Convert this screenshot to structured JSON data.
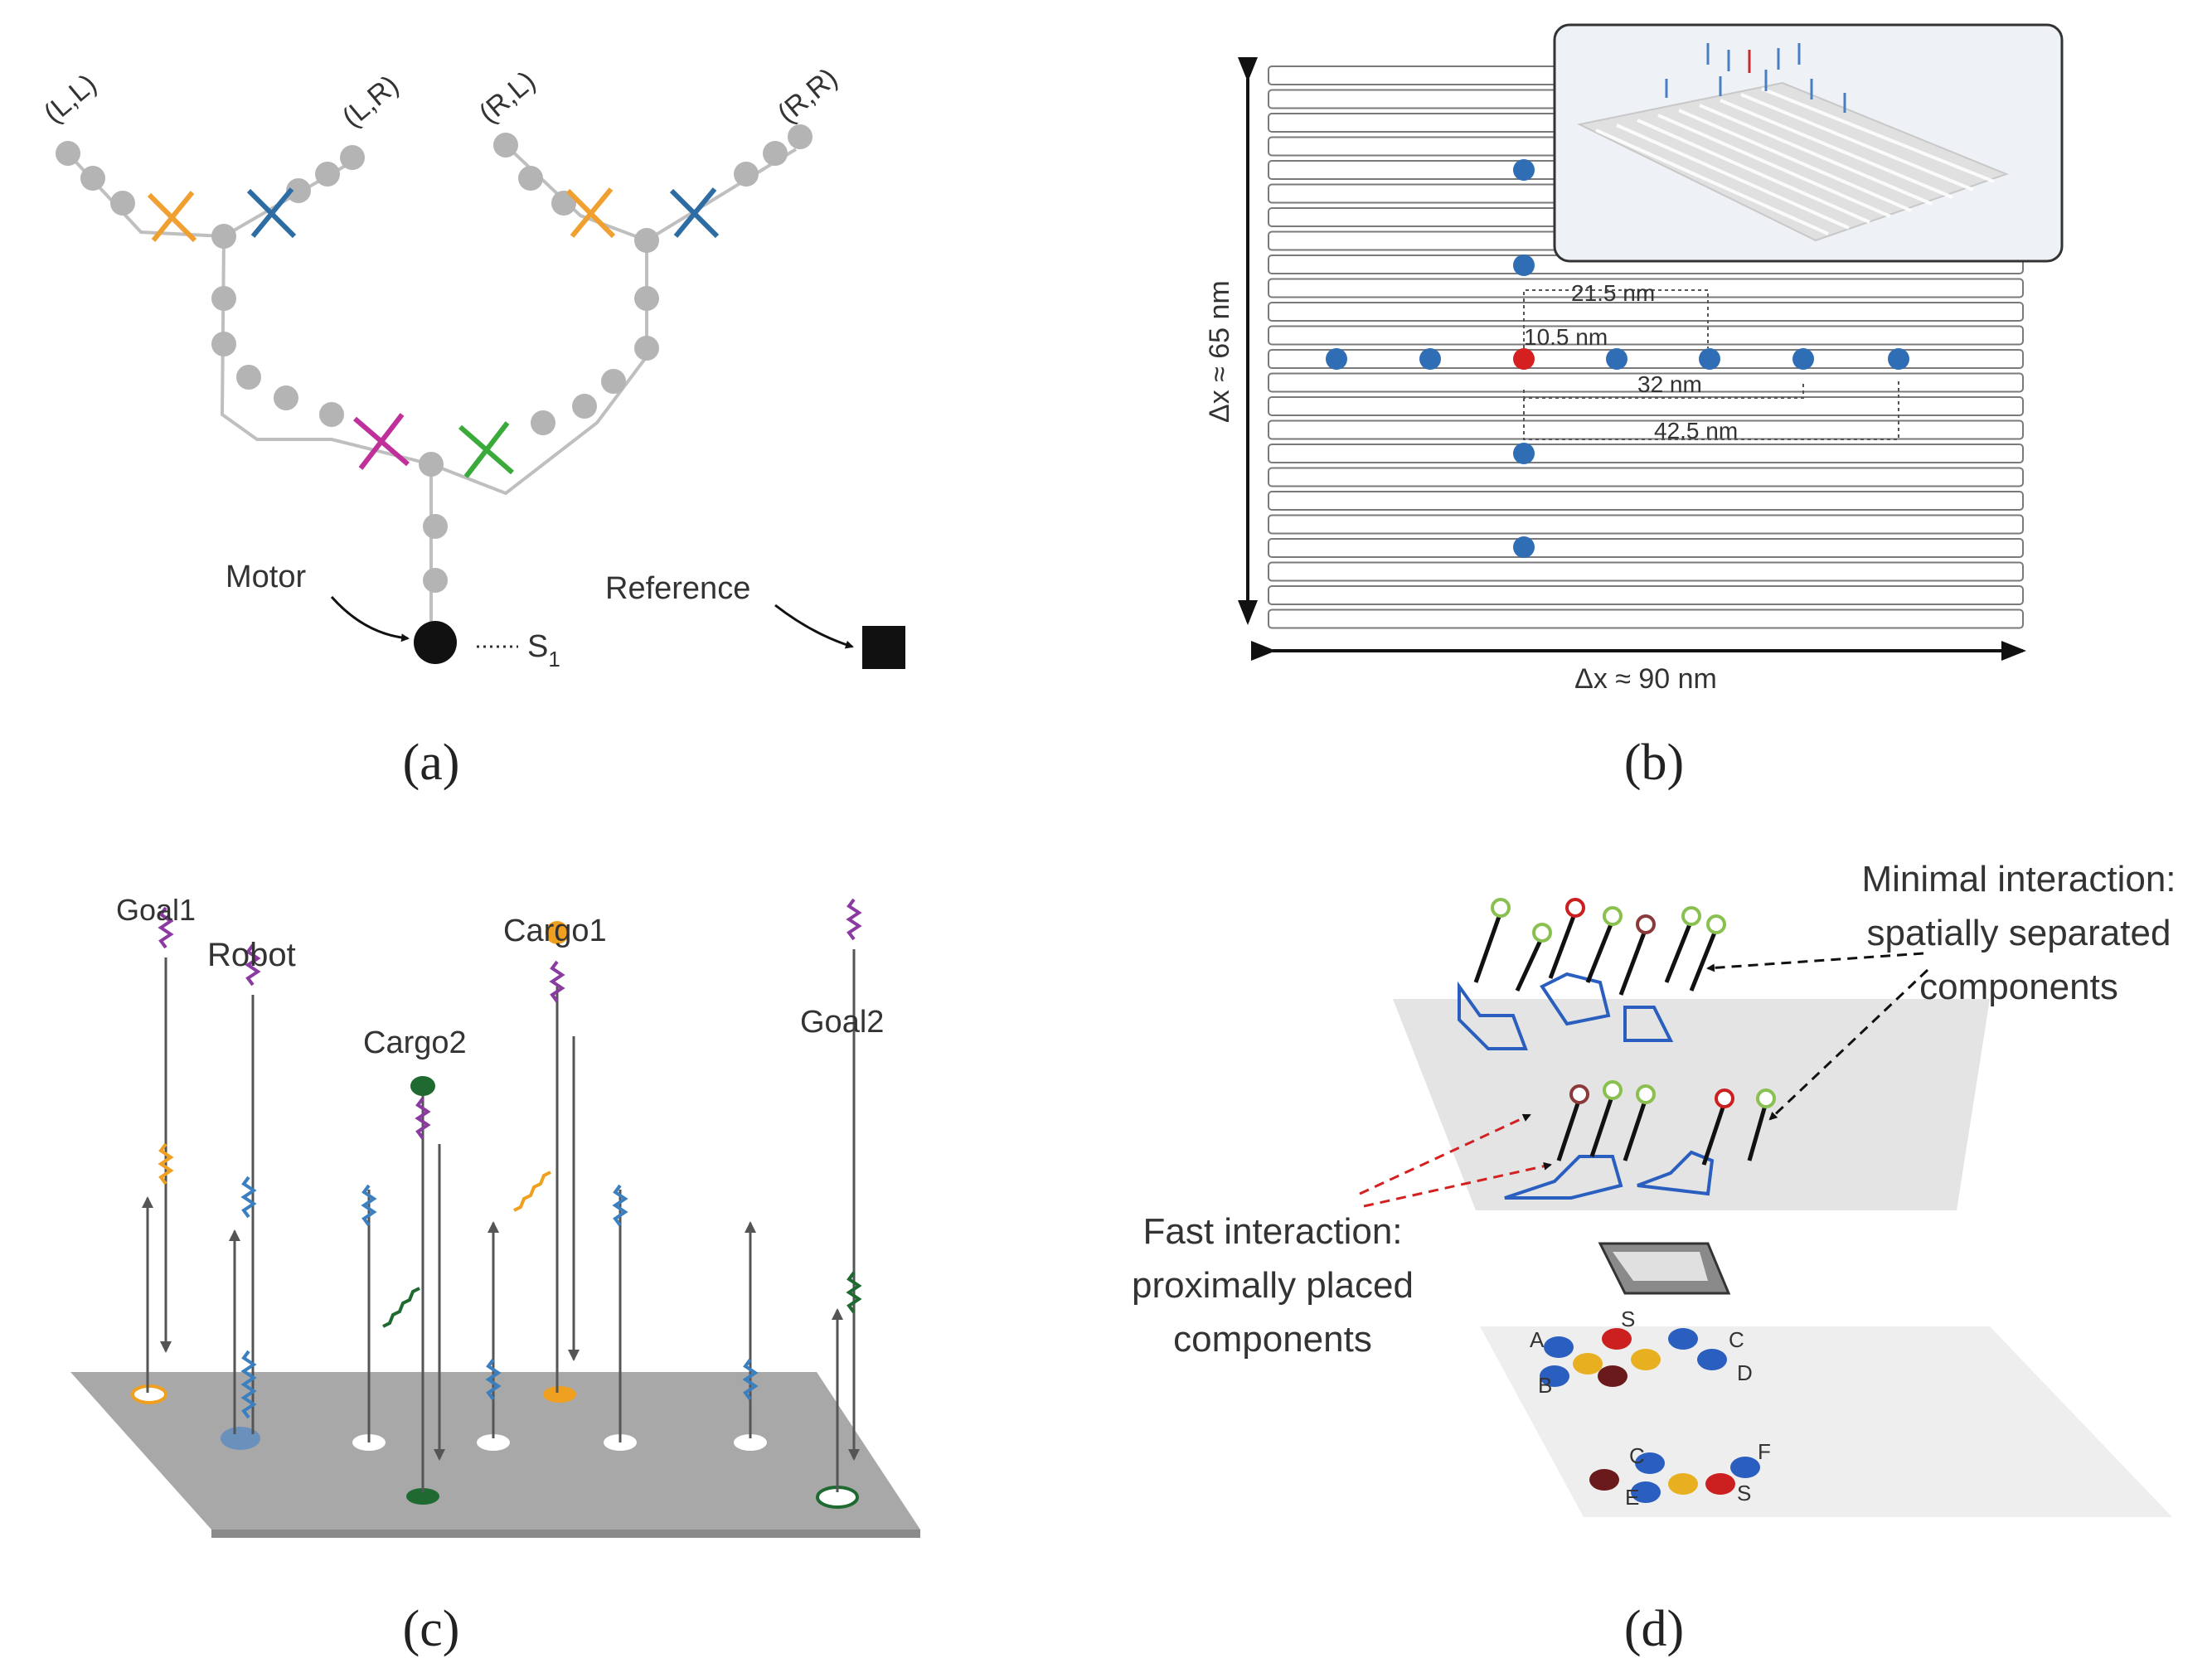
{
  "panels": {
    "a": {
      "caption": "(a)",
      "branch_labels": [
        "(L,L)",
        "(L,R)",
        "(R,L)",
        "(R,R)"
      ],
      "motor_label": "Motor",
      "reference_label": "Reference",
      "s1_prefix": "S",
      "s1_sub": "1",
      "colors": {
        "orange": "#f0a030",
        "blue": "#2e6da4",
        "magenta": "#c0309a",
        "green": "#3aaa3a",
        "node": "#b4b4b4"
      }
    },
    "b": {
      "caption": "(b)",
      "dx_label": "Δx ≈ 90 nm",
      "dy_label": "Δx ≈ 65 nm",
      "d215": "21.5 nm",
      "d105": "10.5 nm",
      "d32": "32 nm",
      "d425": "42.5 nm",
      "colors": {
        "blue_dot": "#2f6db5",
        "red_dot": "#d42020"
      }
    },
    "c": {
      "caption": "(c)",
      "goal1": "Goal1",
      "robot": "Robot",
      "cargo2": "Cargo2",
      "cargo1": "Cargo1",
      "goal2": "Goal2",
      "colors": {
        "purple": "#8a3aa0",
        "blue": "#3a7fc0",
        "orange": "#f0a020",
        "green": "#1e6a30",
        "surface": "#a8a8a8"
      }
    },
    "d": {
      "caption": "(d)",
      "minimal_1": "Minimal interaction:",
      "minimal_2": "spatially separated",
      "minimal_3": "components",
      "fast_1": "Fast interaction:",
      "fast_2": "proximally placed",
      "fast_3": "components",
      "letters": [
        "A",
        "B",
        "C",
        "D",
        "S",
        "C",
        "E",
        "F",
        "S"
      ],
      "colors": {
        "blue": "#2a5fc0",
        "yellow": "#e8b020",
        "red": "#cc2020",
        "darkred": "#6a1a1a",
        "green_ring": "#8ac050"
      }
    }
  }
}
